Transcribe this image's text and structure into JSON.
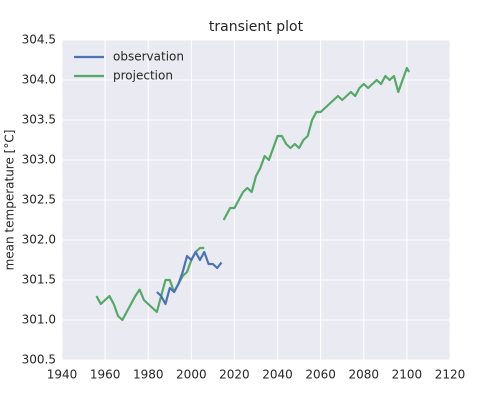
{
  "chart_data": {
    "type": "line",
    "title": "transient plot",
    "y_label": "mean temperature [°C]",
    "xlim": [
      1940,
      2120
    ],
    "xticks": [
      1940,
      1960,
      1980,
      2000,
      2020,
      2040,
      2060,
      2080,
      2100,
      2120
    ],
    "ylim": [
      300.5,
      304.5
    ],
    "yticks": [
      300.5,
      {
        "value": 301,
        "label": "301.0"
      },
      301.5,
      {
        "value": 302,
        "label": "302.0"
      },
      302.5,
      {
        "value": 303,
        "label": "303.0"
      },
      303.5,
      {
        "value": 304,
        "label": "304.0"
      },
      304.5
    ],
    "grid": true,
    "legend": "upper left",
    "series": [
      {
        "name": "observation",
        "color": "#4c72b0",
        "x": [
          1984,
          1986,
          1988,
          1990,
          1992,
          1994,
          1996,
          1998,
          2000,
          2002,
          2004,
          2006,
          2008,
          2010,
          2012,
          2014
        ],
        "values": [
          301.35,
          301.3,
          301.2,
          301.4,
          301.35,
          301.45,
          301.6,
          301.8,
          301.75,
          301.85,
          301.75,
          301.85,
          301.7,
          301.7,
          301.65,
          301.72
        ]
      },
      {
        "name": "projection",
        "color": "#55a868",
        "x": [
          1956,
          1958,
          1960,
          1962,
          1964,
          1966,
          1968,
          1970,
          1972,
          1974,
          1976,
          1978,
          1980,
          1982,
          1984,
          1986,
          1988,
          1990,
          1992,
          1994,
          1996,
          1998,
          2000,
          2002,
          2004,
          2006,
          2010,
          2015,
          2018,
          2020,
          2022,
          2024,
          2026,
          2028,
          2030,
          2032,
          2034,
          2036,
          2038,
          2040,
          2042,
          2044,
          2046,
          2048,
          2050,
          2052,
          2054,
          2056,
          2058,
          2060,
          2062,
          2064,
          2066,
          2068,
          2070,
          2072,
          2074,
          2076,
          2078,
          2080,
          2082,
          2084,
          2086,
          2088,
          2090,
          2092,
          2094,
          2096,
          2098,
          2100,
          2101
        ],
        "values": [
          301.3,
          301.2,
          301.25,
          301.3,
          301.2,
          301.05,
          301.0,
          301.1,
          301.2,
          301.3,
          301.38,
          301.25,
          301.2,
          301.15,
          301.1,
          301.3,
          301.5,
          301.5,
          301.35,
          301.45,
          301.55,
          301.6,
          301.75,
          301.85,
          301.9,
          301.9,
          null,
          302.25,
          302.4,
          302.4,
          302.5,
          302.6,
          302.65,
          302.6,
          302.8,
          302.9,
          303.05,
          303.0,
          303.15,
          303.3,
          303.3,
          303.2,
          303.15,
          303.2,
          303.15,
          303.25,
          303.3,
          303.5,
          303.6,
          303.6,
          303.65,
          303.7,
          303.75,
          303.8,
          303.75,
          303.8,
          303.85,
          303.8,
          303.9,
          303.95,
          303.9,
          303.95,
          304.0,
          303.95,
          304.05,
          304.0,
          304.05,
          303.85,
          304.0,
          304.15,
          304.1
        ]
      }
    ]
  }
}
